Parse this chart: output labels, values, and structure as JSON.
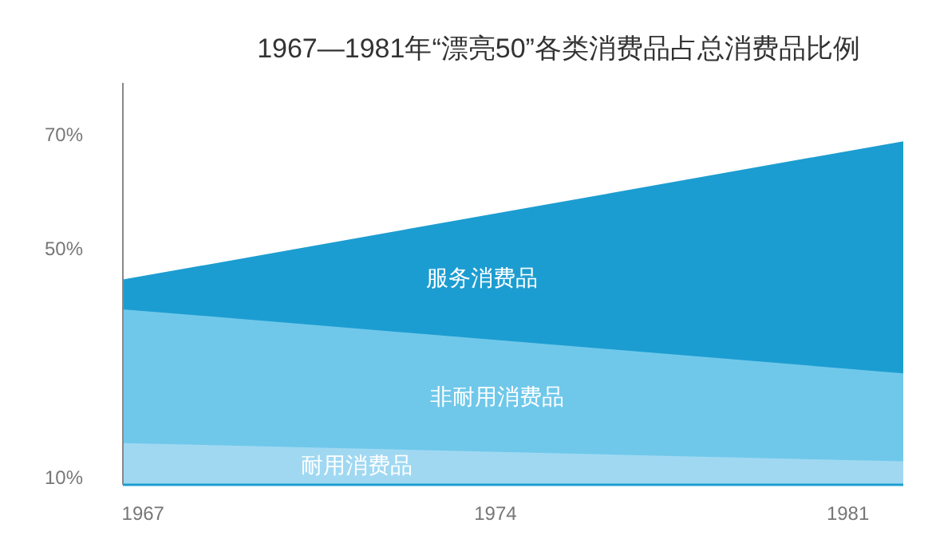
{
  "chart_data": {
    "type": "area",
    "title": "1967—1981年“漂亮50”各类消费品占总消费品比例",
    "x": [
      1966.6,
      1982.1
    ],
    "xlim": [
      1966.6,
      1982.1
    ],
    "xticks": [
      1967,
      1974,
      1981
    ],
    "ylim": [
      8.7,
      79
    ],
    "yticks": [
      {
        "value": 10,
        "label": "10%"
      },
      {
        "value": 50,
        "label": "50%"
      },
      {
        "value": 70,
        "label": "70%"
      }
    ],
    "grid": false,
    "legend": false,
    "series": [
      {
        "name": "服务消费品",
        "color": "#1c9dd1",
        "values": [
          44.6,
          68.8
        ]
      },
      {
        "name": "非耐用消费品",
        "color": "#6fc8ea",
        "values": [
          39.4,
          28.2
        ]
      },
      {
        "name": "耐用消费品",
        "color": "#a0d8f2",
        "values": [
          16.0,
          12.8
        ]
      }
    ]
  }
}
